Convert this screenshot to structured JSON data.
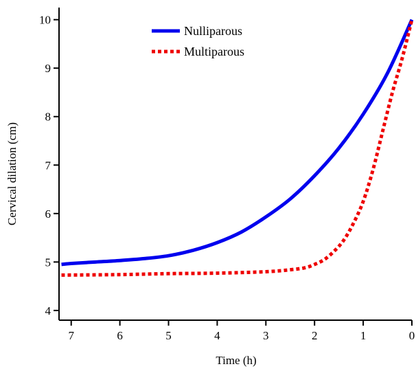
{
  "chart_data": {
    "type": "line",
    "xlabel": "Time (h)",
    "ylabel": "Cervical dilation (cm)",
    "xlim": [
      7.25,
      0
    ],
    "ylim": [
      3.8,
      10.25
    ],
    "x_reversed": true,
    "x_ticks": [
      7,
      6,
      5,
      4,
      3,
      2,
      1,
      0
    ],
    "y_ticks": [
      4,
      5,
      6,
      7,
      8,
      9,
      10
    ],
    "grid": false,
    "legend_position": "top-center",
    "series": [
      {
        "name": "Nulliparous",
        "style": "solid",
        "color": "#0000ee",
        "x": [
          7.2,
          7,
          6.5,
          6,
          5.5,
          5,
          4.5,
          4,
          3.5,
          3,
          2.5,
          2,
          1.5,
          1,
          0.5,
          0
        ],
        "y": [
          4.95,
          4.97,
          5.0,
          5.03,
          5.07,
          5.13,
          5.24,
          5.4,
          5.62,
          5.93,
          6.3,
          6.78,
          7.35,
          8.05,
          8.9,
          10.0
        ]
      },
      {
        "name": "Multiparous",
        "style": "dotted",
        "color": "#ee0000",
        "x": [
          7.2,
          6,
          5,
          4,
          3,
          2.5,
          2.2,
          2.0,
          1.8,
          1.6,
          1.4,
          1.2,
          1.0,
          0.8,
          0.6,
          0.4,
          0.2,
          0
        ],
        "y": [
          4.73,
          4.74,
          4.76,
          4.77,
          4.8,
          4.84,
          4.88,
          4.95,
          5.05,
          5.22,
          5.45,
          5.8,
          6.25,
          6.9,
          7.7,
          8.5,
          9.2,
          10.0
        ]
      }
    ]
  }
}
